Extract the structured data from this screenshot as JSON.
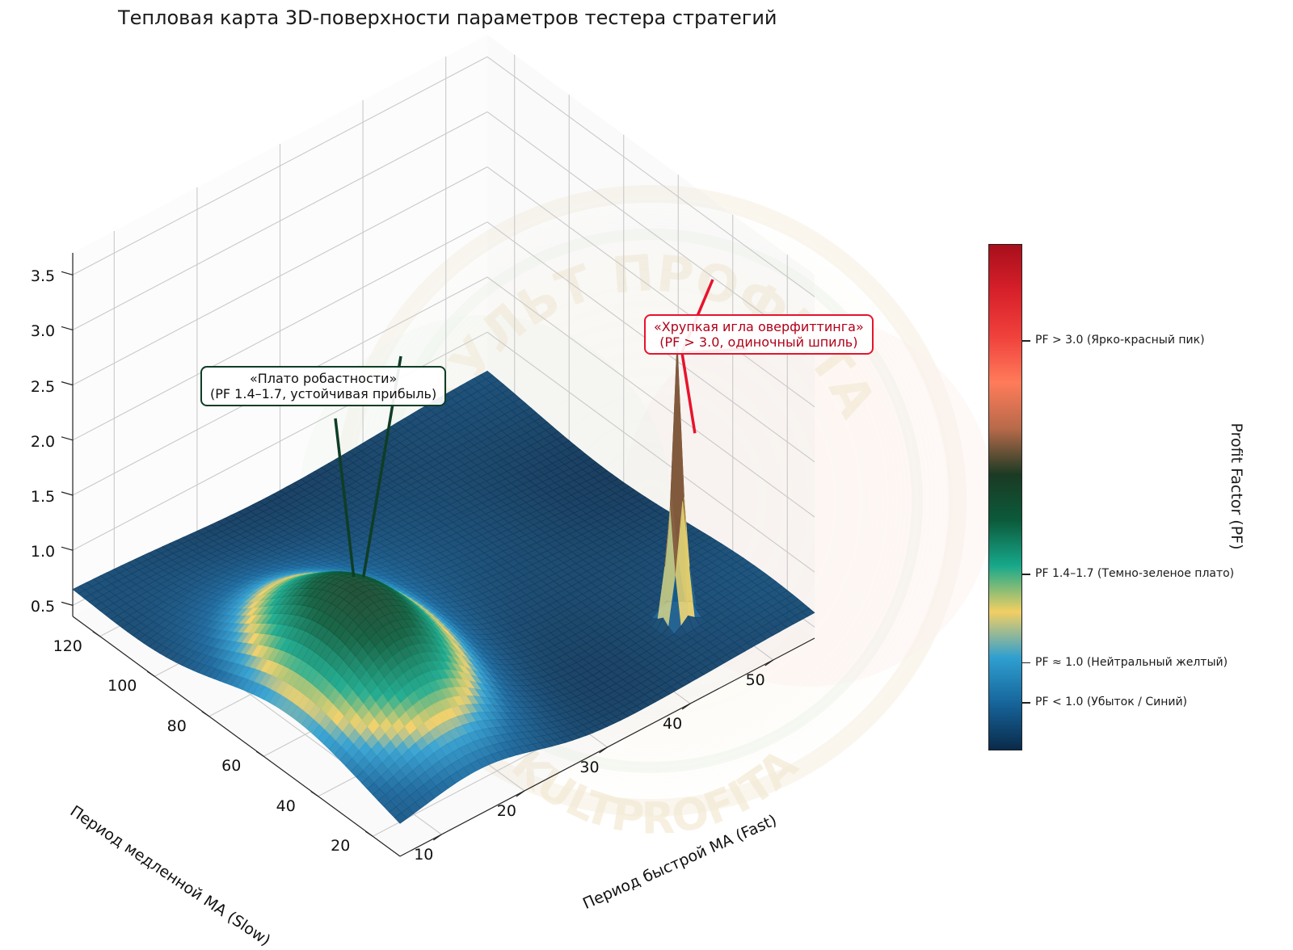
{
  "chart_data": {
    "type": "surface3d",
    "title": "Тепловая карта 3D-поверхности параметров тестера стратегий",
    "xlabel": "Период быстрой MA (Fast)",
    "ylabel": "Период медленной MA (Slow)",
    "zlabel": "",
    "x_ticks": [
      "10",
      "20",
      "30",
      "40",
      "50"
    ],
    "y_ticks": [
      "20",
      "40",
      "60",
      "80",
      "100",
      "120"
    ],
    "z_ticks": [
      "0.5",
      "1.0",
      "1.5",
      "2.0",
      "2.5",
      "3.0",
      "3.5"
    ],
    "xlim": [
      5,
      55
    ],
    "ylim": [
      10,
      130
    ],
    "zlim": [
      0.4,
      3.7
    ],
    "surface": {
      "base_pf": 0.6,
      "plateau": {
        "center_fast": 15,
        "center_slow": 55,
        "peak_pf": 1.6
      },
      "spike": {
        "center_fast": 45,
        "center_slow": 30,
        "peak_pf": 3.1
      }
    },
    "colorbar": {
      "title": "Profit Factor (PF)",
      "colors": [
        "#0a2a4a",
        "#16649a",
        "#2f9fd0",
        "#f2cf63",
        "#17a88b",
        "#0b5a3a",
        "#1b3a24",
        "#b76a4a",
        "#ff7b5a",
        "#f0413c",
        "#d7202a",
        "#a80f1c"
      ],
      "labels": [
        {
          "text": "PF > 3.0 (Ярко-красный пик)",
          "value": 3.0
        },
        {
          "text": "PF 1.4–1.7 (Темно-зеленое плато)",
          "value": 1.55
        },
        {
          "text": "PF ≈ 1.0 (Нейтральный желтый)",
          "value": 1.0
        },
        {
          "text": "PF < 1.0 (Убыток / Синий)",
          "value": 0.75
        }
      ]
    },
    "annotations": [
      {
        "line1": "«Плато робастности»",
        "line2": "(PF 1.4–1.7, устойчивая прибыль)",
        "color": "#0f3d26"
      },
      {
        "line1": "«Хрупкая игла оверфиттинга»",
        "line2": "(PF > 3.0, одиночный шпиль)",
        "color": "#e8132c"
      }
    ],
    "watermark": {
      "line1": "КУЛЬТ ПРОФИТА",
      "line2": "KULTPROFITA"
    }
  }
}
